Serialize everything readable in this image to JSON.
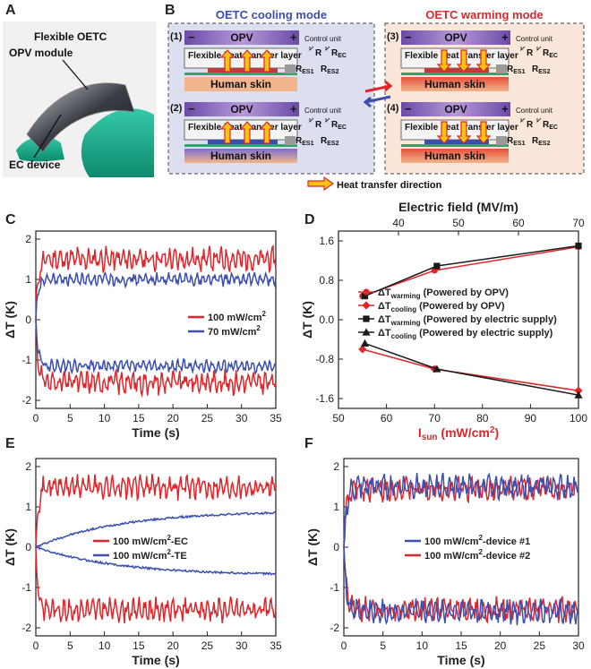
{
  "panel_letters": {
    "A": "A",
    "B": "B",
    "C": "C",
    "D": "D",
    "E": "E",
    "F": "F"
  },
  "panel_a": {
    "title": "Flexible OETC",
    "label_opv": "OPV module",
    "label_ec": "EC device"
  },
  "panel_b": {
    "cooling_title": "OETC cooling mode",
    "warming_title": "OETC warming mode",
    "subpanels": [
      {
        "num": "(1)",
        "opv": "OPV",
        "layer": "Flexible heat transfer layer",
        "skin": "Human skin",
        "control": "Control unit",
        "r": "R",
        "rec": "R",
        "rec_sub": "EC",
        "res1": "R",
        "res1_sub": "ES1",
        "res2": "R",
        "res2_sub": "ES2",
        "minus": "−",
        "plus": "+"
      },
      {
        "num": "(2)",
        "opv": "OPV",
        "layer": "Flexible heat transfer layer",
        "skin": "Human skin",
        "control": "Control unit",
        "r": "R",
        "rec": "R",
        "rec_sub": "EC",
        "res1": "R",
        "res1_sub": "ES1",
        "res2": "R",
        "res2_sub": "ES2",
        "minus": "−",
        "plus": "+"
      },
      {
        "num": "(3)",
        "opv": "OPV",
        "layer": "Flexible heat transfer layer",
        "skin": "Human skin",
        "control": "Control unit",
        "r": "R",
        "rec": "R",
        "rec_sub": "EC",
        "res1": "R",
        "res1_sub": "ES1",
        "res2": "R",
        "res2_sub": "ES2",
        "minus": "−",
        "plus": "+"
      },
      {
        "num": "(4)",
        "opv": "OPV",
        "layer": "Flexible heat transfer layer",
        "skin": "Human skin",
        "control": "Control unit",
        "r": "R",
        "rec": "R",
        "rec_sub": "EC",
        "res1": "R",
        "res1_sub": "ES1",
        "res2": "R",
        "res2_sub": "ES2",
        "minus": "−",
        "plus": "+"
      }
    ],
    "legend": "Heat transfer direction",
    "colors": {
      "cooling_bg": "#d9dcef",
      "warming_bg": "#fbe6d8",
      "opv": "#8e6bbf",
      "skin": "#f2b48a",
      "arrow": "#e8251f",
      "arrow_fill": "#f6c40f"
    }
  },
  "colors": {
    "red": "#e0262b",
    "blue": "#3b4fb0",
    "black": "#1a1a1a"
  },
  "chart_data": [
    {
      "panel": "C",
      "type": "line",
      "xlabel": "Time (s)",
      "ylabel": "ΔT (K)",
      "xlim": [
        0,
        35
      ],
      "ylim": [
        -2.2,
        2.2
      ],
      "xticks": [
        "0",
        "5",
        "10",
        "15",
        "20",
        "25",
        "30",
        "35"
      ],
      "yticks": [
        "-2",
        "-1",
        "0",
        "1",
        "2"
      ],
      "series": [
        {
          "name": "100 mW/cm2",
          "color": "#e0262b",
          "steady_plus": 1.5,
          "steady_minus": -1.55,
          "noise": 0.3
        },
        {
          "name": "70 mW/cm2",
          "color": "#3b4fb0",
          "steady_plus": 1.0,
          "steady_minus": -1.15,
          "noise": 0.16
        }
      ],
      "legend": [
        {
          "base": "100 mW/cm",
          "sup": "2"
        },
        {
          "base": "70 mW/cm",
          "sup": "2"
        }
      ]
    },
    {
      "panel": "D",
      "type": "line",
      "xlabel": "I",
      "xlabel_sub": "sun",
      "xlabel_rest": " (mW/cm",
      "xlabel_sup": "2",
      "xlabel_end": ")",
      "top_xlabel": "Electric field (MV/m)",
      "ylabel": "ΔT (K)",
      "xlim": [
        50,
        100
      ],
      "ylim": [
        -1.8,
        1.8
      ],
      "top_xlim": [
        30,
        70
      ],
      "xticks": [
        "50",
        "60",
        "70",
        "80",
        "90",
        "100"
      ],
      "top_xticks": [
        "40",
        "50",
        "60",
        "70"
      ],
      "yticks": [
        "-1.6",
        "-0.8",
        "0.0",
        "0.8",
        "1.6"
      ],
      "series": [
        {
          "name": "ΔTwarming (Powered by OPV)",
          "color": "#e0262b",
          "marker": "circle",
          "x": [
            55,
            70,
            100
          ],
          "y": [
            0.48,
            1.0,
            1.48
          ]
        },
        {
          "name": "ΔTcooling (Powered by OPV)",
          "color": "#e0262b",
          "marker": "diamond",
          "x": [
            55,
            70,
            100
          ],
          "y": [
            -0.6,
            -1.0,
            -1.44
          ]
        },
        {
          "name": "ΔTwarming (Powered by electric supply)",
          "color": "#1a1a1a",
          "marker": "square",
          "x": [
            55.5,
            70.5,
            100
          ],
          "y": [
            0.48,
            1.09,
            1.5
          ]
        },
        {
          "name": "ΔTcooling (Powered by electric supply)",
          "color": "#1a1a1a",
          "marker": "triangle",
          "x": [
            55.5,
            70.5,
            100
          ],
          "y": [
            -0.48,
            -1.0,
            -1.53
          ]
        }
      ],
      "legend": [
        {
          "a": "ΔT",
          "sub": "warming",
          "b": " (Powered by OPV)"
        },
        {
          "a": "ΔT",
          "sub": "cooling",
          "b": " (Powered by OPV)"
        },
        {
          "a": "ΔT",
          "sub": "warming",
          "b": " (Powered by electric supply)"
        },
        {
          "a": "ΔT",
          "sub": "cooling",
          "b": " (Powered by electric supply)"
        }
      ]
    },
    {
      "panel": "E",
      "type": "line",
      "xlabel": "Time (s)",
      "ylabel": "ΔT (K)",
      "xlim": [
        0,
        35
      ],
      "ylim": [
        -2.2,
        2.2
      ],
      "xticks": [
        "0",
        "5",
        "10",
        "15",
        "20",
        "25",
        "30",
        "35"
      ],
      "yticks": [
        "-2",
        "-1",
        "0",
        "1",
        "2"
      ],
      "series": [
        {
          "name": "100 mW/cm2-EC",
          "color": "#e0262b",
          "steady_plus": 1.5,
          "steady_minus": -1.55,
          "noise": 0.3
        },
        {
          "name": "100 mW/cm2-TE",
          "color": "#3b4fb0",
          "end_plus": 0.9,
          "end_minus": -0.7,
          "noise": 0.05
        }
      ],
      "legend": [
        {
          "base": "100 mW/cm",
          "sup": "2",
          "rest": "-EC"
        },
        {
          "base": "100 mW/cm",
          "sup": "2",
          "rest": "-TE"
        }
      ]
    },
    {
      "panel": "F",
      "type": "line",
      "xlabel": "Time (s)",
      "ylabel": "ΔT (K)",
      "xlim": [
        0,
        30
      ],
      "ylim": [
        -2.2,
        2.2
      ],
      "xticks": [
        "0",
        "5",
        "10",
        "15",
        "20",
        "25",
        "30"
      ],
      "yticks": [
        "-2",
        "-1",
        "0",
        "1",
        "2"
      ],
      "series": [
        {
          "name": "100 mW/cm2-device #1",
          "color": "#3b4fb0",
          "steady_plus": 1.5,
          "steady_minus": -1.6,
          "noise": 0.3
        },
        {
          "name": "100 mW/cm2-device #2",
          "color": "#e0262b",
          "steady_plus": 1.45,
          "steady_minus": -1.55,
          "noise": 0.3
        }
      ],
      "legend": [
        {
          "base": "100 mW/cm",
          "sup": "2",
          "rest": "-device #1"
        },
        {
          "base": "100 mW/cm",
          "sup": "2",
          "rest": "-device #2"
        }
      ]
    }
  ]
}
